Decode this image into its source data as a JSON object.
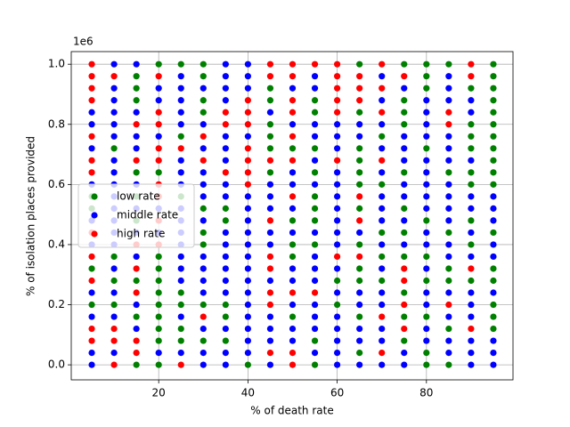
{
  "chart_data": {
    "type": "scatter",
    "xlabel": "% of death rate",
    "ylabel": "% of isolation places provided",
    "y_offset_label": "1e6",
    "xlim": [
      0.4,
      99.4
    ],
    "ylim": [
      -0.05,
      1.042
    ],
    "xticks": [
      20,
      40,
      60,
      80
    ],
    "yticks": [
      {
        "value": 0,
        "label": "0.0"
      },
      {
        "value": 0.2,
        "label": "0.2"
      },
      {
        "value": 0.4,
        "label": "0.4"
      },
      {
        "value": 0.6,
        "label": "0.6"
      },
      {
        "value": 0.8,
        "label": "0.8"
      },
      {
        "value": 1,
        "label": "1.0"
      }
    ],
    "grid": true,
    "legend": "center left",
    "series": [
      {
        "name": "low rate",
        "color": "#008000",
        "x": [
          5,
          5,
          5,
          5,
          10,
          10,
          10,
          10,
          15,
          15,
          15,
          15,
          15,
          15,
          15,
          15,
          15,
          20,
          20,
          20,
          20,
          20,
          20,
          20,
          20,
          20,
          20,
          20,
          25,
          25,
          25,
          25,
          25,
          25,
          25,
          30,
          30,
          30,
          30,
          30,
          30,
          30,
          30,
          30,
          35,
          35,
          35,
          35,
          35,
          40,
          45,
          45,
          45,
          45,
          45,
          45,
          50,
          50,
          50,
          50,
          50,
          55,
          55,
          55,
          55,
          55,
          55,
          55,
          55,
          55,
          55,
          60,
          60,
          65,
          65,
          65,
          65,
          65,
          65,
          65,
          65,
          65,
          65,
          65,
          65,
          70,
          70,
          70,
          70,
          70,
          75,
          75,
          75,
          75,
          75,
          75,
          75,
          75,
          75,
          75,
          75,
          80,
          80,
          80,
          80,
          80,
          80,
          80,
          80,
          80,
          80,
          85,
          85,
          85,
          85,
          85,
          85,
          85,
          90,
          90,
          90,
          90,
          90,
          90,
          90,
          90,
          90,
          95,
          95,
          95,
          95,
          95,
          95,
          95,
          95,
          95,
          95,
          95,
          95,
          95,
          95,
          95,
          95,
          95
        ],
        "y": [
          0.56,
          0.52,
          0.32,
          0.2,
          0.72,
          0.36,
          0.28,
          0.2,
          0.96,
          0.92,
          0.88,
          0.64,
          0.56,
          0.48,
          0.28,
          0.16,
          0,
          1,
          0.64,
          0.36,
          0.32,
          0.28,
          0.24,
          0.2,
          0.16,
          0.12,
          0.08,
          0,
          1,
          0.76,
          0.56,
          0.24,
          0.2,
          0.12,
          0.08,
          1,
          0.96,
          0.88,
          0.84,
          0.52,
          0.44,
          0.4,
          0.2,
          0.08,
          0.52,
          0.48,
          0.2,
          0.16,
          0.08,
          0,
          0.92,
          0.88,
          0.8,
          0.76,
          0.72,
          0.64,
          0.72,
          0.48,
          0.4,
          0.36,
          0.16,
          0.88,
          0.84,
          0.72,
          0.64,
          0.56,
          0.52,
          0.48,
          0.4,
          0.08,
          0,
          0.28,
          0.2,
          1,
          0.84,
          0.72,
          0.68,
          0.64,
          0.6,
          0.52,
          0.4,
          0.32,
          0.28,
          0.16,
          0.04,
          0.76,
          0.6,
          0.44,
          0.36,
          0.28,
          1,
          0.88,
          0.84,
          0.8,
          0.64,
          0.52,
          0.44,
          0.36,
          0.24,
          0.16,
          0.08,
          1,
          0.96,
          0.92,
          0.72,
          0.48,
          0.36,
          0.28,
          0.16,
          0.04,
          0,
          1,
          0.64,
          0.44,
          0.32,
          0.28,
          0.12,
          0,
          0.92,
          0.8,
          0.76,
          0.72,
          0.64,
          0.6,
          0.48,
          0.4,
          0.28,
          1,
          0.96,
          0.92,
          0.88,
          0.84,
          0.8,
          0.76,
          0.72,
          0.68,
          0.64,
          0.6,
          0.44,
          0.32,
          0.28,
          0.2,
          0.16,
          0.12
        ]
      },
      {
        "name": "middle rate",
        "color": "#0000ff",
        "x": [
          5,
          5,
          5,
          5,
          5,
          5,
          5,
          5,
          5,
          5,
          10,
          10,
          10,
          10,
          10,
          10,
          10,
          10,
          10,
          10,
          10,
          10,
          10,
          10,
          10,
          10,
          10,
          10,
          15,
          15,
          15,
          15,
          15,
          15,
          15,
          15,
          15,
          15,
          20,
          20,
          20,
          20,
          20,
          20,
          25,
          25,
          25,
          25,
          25,
          25,
          25,
          25,
          25,
          25,
          25,
          25,
          25,
          25,
          25,
          25,
          25,
          30,
          30,
          30,
          30,
          30,
          30,
          30,
          30,
          30,
          30,
          30,
          30,
          30,
          30,
          35,
          35,
          35,
          35,
          35,
          35,
          35,
          35,
          35,
          35,
          35,
          35,
          35,
          35,
          35,
          35,
          35,
          35,
          40,
          40,
          40,
          40,
          40,
          40,
          40,
          40,
          40,
          40,
          40,
          40,
          40,
          40,
          40,
          40,
          40,
          40,
          45,
          45,
          45,
          45,
          45,
          45,
          45,
          45,
          45,
          45,
          45,
          50,
          50,
          50,
          50,
          50,
          50,
          50,
          50,
          50,
          50,
          50,
          55,
          55,
          55,
          55,
          55,
          55,
          55,
          55,
          55,
          55,
          55,
          55,
          55,
          55,
          60,
          60,
          60,
          60,
          60,
          60,
          60,
          60,
          60,
          60,
          60,
          60,
          60,
          60,
          60,
          60,
          60,
          65,
          65,
          65,
          65,
          65,
          65,
          65,
          65,
          70,
          70,
          70,
          70,
          70,
          70,
          70,
          70,
          70,
          70,
          70,
          70,
          70,
          70,
          70,
          75,
          75,
          75,
          75,
          75,
          75,
          75,
          75,
          75,
          75,
          80,
          80,
          80,
          80,
          80,
          80,
          80,
          80,
          80,
          80,
          80,
          80,
          80,
          80,
          80,
          80,
          85,
          85,
          85,
          85,
          85,
          85,
          85,
          85,
          85,
          85,
          85,
          85,
          85,
          85,
          85,
          85,
          90,
          90,
          90,
          90,
          90,
          90,
          90,
          90,
          90,
          90,
          90,
          90,
          90,
          95,
          95,
          95,
          95,
          95,
          95,
          95,
          95,
          95
        ],
        "y": [
          0.84,
          0.8,
          0.72,
          0.6,
          0.48,
          0.4,
          0.24,
          0.16,
          0.04,
          0,
          1,
          0.92,
          0.88,
          0.84,
          0.8,
          0.76,
          0.68,
          0.64,
          0.6,
          0.56,
          0.52,
          0.48,
          0.44,
          0.4,
          0.32,
          0.24,
          0.16,
          0.04,
          1,
          0.84,
          0.76,
          0.72,
          0.6,
          0.52,
          0.44,
          0.36,
          0.2,
          0.12,
          0.92,
          0.88,
          0.76,
          0.52,
          0.44,
          0.04,
          0.96,
          0.92,
          0.88,
          0.84,
          0.8,
          0.68,
          0.64,
          0.6,
          0.52,
          0.48,
          0.44,
          0.4,
          0.36,
          0.32,
          0.28,
          0.16,
          0.04,
          0.92,
          0.8,
          0.72,
          0.64,
          0.6,
          0.56,
          0.48,
          0.36,
          0.32,
          0.28,
          0.24,
          0.12,
          0.04,
          0,
          1,
          0.96,
          0.92,
          0.88,
          0.76,
          0.72,
          0.68,
          0.6,
          0.56,
          0.44,
          0.4,
          0.36,
          0.32,
          0.28,
          0.24,
          0.12,
          0.04,
          0,
          1,
          0.96,
          0.92,
          0.76,
          0.56,
          0.52,
          0.48,
          0.44,
          0.4,
          0.36,
          0.32,
          0.28,
          0.24,
          0.2,
          0.16,
          0.12,
          0.08,
          0.04,
          0.84,
          0.6,
          0.56,
          0.52,
          0.44,
          0.4,
          0.28,
          0.16,
          0.12,
          0.08,
          0,
          0.92,
          0.8,
          0.64,
          0.6,
          0.52,
          0.44,
          0.32,
          0.28,
          0.2,
          0.12,
          0.08,
          0.96,
          0.92,
          0.8,
          0.76,
          0.68,
          0.6,
          0.44,
          0.36,
          0.32,
          0.28,
          0.2,
          0.16,
          0.12,
          0.04,
          0.8,
          0.76,
          0.72,
          0.64,
          0.6,
          0.56,
          0.52,
          0.48,
          0.44,
          0.4,
          0.32,
          0.24,
          0.16,
          0.12,
          0.08,
          0.04,
          0,
          0.8,
          0.76,
          0.44,
          0.24,
          0.2,
          0.12,
          0.08,
          0,
          0.96,
          0.88,
          0.8,
          0.72,
          0.64,
          0.56,
          0.52,
          0.48,
          0.4,
          0.32,
          0.24,
          0.2,
          0.12,
          0.08,
          0,
          0.92,
          0.76,
          0.72,
          0.68,
          0.6,
          0.56,
          0.48,
          0.4,
          0.04,
          0,
          0.88,
          0.84,
          0.8,
          0.76,
          0.68,
          0.64,
          0.6,
          0.56,
          0.52,
          0.44,
          0.4,
          0.32,
          0.24,
          0.2,
          0.12,
          0.08,
          0.96,
          0.92,
          0.88,
          0.76,
          0.72,
          0.68,
          0.6,
          0.56,
          0.52,
          0.48,
          0.4,
          0.36,
          0.24,
          0.16,
          0.08,
          0.04,
          0.88,
          0.84,
          0.68,
          0.56,
          0.52,
          0.44,
          0.36,
          0.24,
          0.2,
          0.16,
          0.08,
          0.04,
          0,
          0.56,
          0.52,
          0.48,
          0.4,
          0.36,
          0.24,
          0.08,
          0.04,
          0
        ]
      },
      {
        "name": "high rate",
        "color": "#ff0000",
        "x": [
          5,
          5,
          5,
          5,
          5,
          5,
          5,
          5,
          5,
          5,
          5,
          5,
          10,
          10,
          10,
          10,
          15,
          15,
          15,
          15,
          15,
          15,
          15,
          20,
          20,
          20,
          20,
          20,
          20,
          20,
          20,
          20,
          25,
          25,
          30,
          30,
          30,
          35,
          35,
          35,
          40,
          40,
          40,
          40,
          40,
          40,
          40,
          45,
          45,
          45,
          45,
          45,
          45,
          45,
          45,
          45,
          50,
          50,
          50,
          50,
          50,
          50,
          50,
          50,
          50,
          50,
          55,
          55,
          60,
          60,
          60,
          60,
          60,
          60,
          60,
          65,
          65,
          65,
          65,
          65,
          65,
          70,
          70,
          70,
          70,
          70,
          70,
          75,
          75,
          75,
          75,
          75,
          85,
          85,
          85,
          90,
          90,
          90,
          90
        ],
        "y": [
          1,
          0.96,
          0.92,
          0.88,
          0.76,
          0.68,
          0.64,
          0.44,
          0.36,
          0.28,
          0.12,
          0.08,
          0.96,
          0.12,
          0.08,
          0,
          0.8,
          0.68,
          0.4,
          0.32,
          0.24,
          0.08,
          0.04,
          0.96,
          0.84,
          0.8,
          0.72,
          0.68,
          0.6,
          0.56,
          0.48,
          0.4,
          0.72,
          0,
          0.76,
          0.68,
          0.16,
          0.84,
          0.8,
          0.64,
          0.88,
          0.84,
          0.8,
          0.72,
          0.68,
          0.64,
          0.6,
          1,
          0.96,
          0.68,
          0.48,
          0.36,
          0.32,
          0.24,
          0.2,
          0.04,
          1,
          0.96,
          0.88,
          0.84,
          0.76,
          0.68,
          0.56,
          0.24,
          0.04,
          0,
          1,
          0.24,
          1,
          0.96,
          0.92,
          0.88,
          0.84,
          0.68,
          0.36,
          0.96,
          0.92,
          0.88,
          0.56,
          0.48,
          0.36,
          1,
          0.92,
          0.84,
          0.68,
          0.16,
          0.04,
          0.96,
          0.32,
          0.28,
          0.2,
          0.12,
          0.84,
          0.8,
          0.2,
          1,
          0.96,
          0.32,
          0.12
        ]
      }
    ]
  }
}
